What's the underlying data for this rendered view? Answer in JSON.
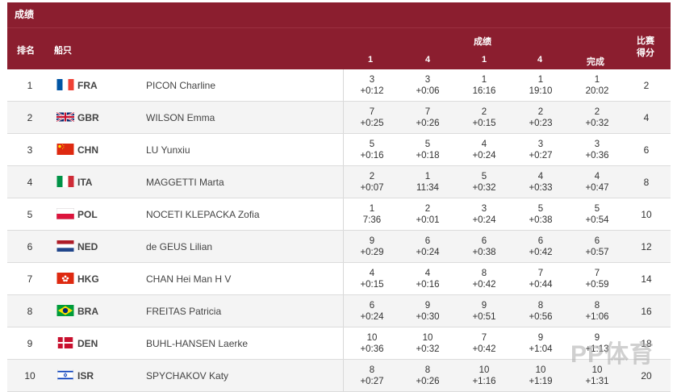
{
  "header": {
    "section_title": "成绩",
    "col_rank": "排名",
    "col_boat": "船只",
    "col_results": "成绩",
    "race_cols": [
      "1",
      "4",
      "1",
      "4",
      "完成"
    ],
    "col_points_line1": "比赛",
    "col_points_line2": "得分"
  },
  "rows": [
    {
      "rank": "1",
      "code": "FRA",
      "flag": "fr-flag-icon",
      "name": "PICON Charline",
      "r": [
        [
          "3",
          "+0:12"
        ],
        [
          "3",
          "+0:06"
        ],
        [
          "1",
          "16:16"
        ],
        [
          "1",
          "19:10"
        ],
        [
          "1",
          "20:02"
        ]
      ],
      "points": "2"
    },
    {
      "rank": "2",
      "code": "GBR",
      "flag": "gb-flag-icon",
      "name": "WILSON Emma",
      "r": [
        [
          "7",
          "+0:25"
        ],
        [
          "7",
          "+0:26"
        ],
        [
          "2",
          "+0:15"
        ],
        [
          "2",
          "+0:23"
        ],
        [
          "2",
          "+0:32"
        ]
      ],
      "points": "4"
    },
    {
      "rank": "3",
      "code": "CHN",
      "flag": "cn-flag-icon",
      "name": "LU Yunxiu",
      "r": [
        [
          "5",
          "+0:16"
        ],
        [
          "5",
          "+0:18"
        ],
        [
          "4",
          "+0:24"
        ],
        [
          "3",
          "+0:27"
        ],
        [
          "3",
          "+0:36"
        ]
      ],
      "points": "6"
    },
    {
      "rank": "4",
      "code": "ITA",
      "flag": "it-flag-icon",
      "name": "MAGGETTI Marta",
      "r": [
        [
          "2",
          "+0:07"
        ],
        [
          "1",
          "11:34"
        ],
        [
          "5",
          "+0:32"
        ],
        [
          "4",
          "+0:33"
        ],
        [
          "4",
          "+0:47"
        ]
      ],
      "points": "8"
    },
    {
      "rank": "5",
      "code": "POL",
      "flag": "pl-flag-icon",
      "name": "NOCETI KLEPACKA Zofia",
      "r": [
        [
          "1",
          "7:36"
        ],
        [
          "2",
          "+0:01"
        ],
        [
          "3",
          "+0:24"
        ],
        [
          "5",
          "+0:38"
        ],
        [
          "5",
          "+0:54"
        ]
      ],
      "points": "10"
    },
    {
      "rank": "6",
      "code": "NED",
      "flag": "nl-flag-icon",
      "name": "de GEUS Lilian",
      "r": [
        [
          "9",
          "+0:29"
        ],
        [
          "6",
          "+0:24"
        ],
        [
          "6",
          "+0:38"
        ],
        [
          "6",
          "+0:42"
        ],
        [
          "6",
          "+0:57"
        ]
      ],
      "points": "12"
    },
    {
      "rank": "7",
      "code": "HKG",
      "flag": "hk-flag-icon",
      "name": "CHAN Hei Man H V",
      "r": [
        [
          "4",
          "+0:15"
        ],
        [
          "4",
          "+0:16"
        ],
        [
          "8",
          "+0:42"
        ],
        [
          "7",
          "+0:44"
        ],
        [
          "7",
          "+0:59"
        ]
      ],
      "points": "14"
    },
    {
      "rank": "8",
      "code": "BRA",
      "flag": "br-flag-icon",
      "name": "FREITAS Patricia",
      "r": [
        [
          "6",
          "+0:24"
        ],
        [
          "9",
          "+0:30"
        ],
        [
          "9",
          "+0:51"
        ],
        [
          "8",
          "+0:56"
        ],
        [
          "8",
          "+1:06"
        ]
      ],
      "points": "16"
    },
    {
      "rank": "9",
      "code": "DEN",
      "flag": "dk-flag-icon",
      "name": "BUHL-HANSEN Laerke",
      "r": [
        [
          "10",
          "+0:36"
        ],
        [
          "10",
          "+0:32"
        ],
        [
          "7",
          "+0:42"
        ],
        [
          "9",
          "+1:04"
        ],
        [
          "9",
          "+1:13"
        ]
      ],
      "points": "18"
    },
    {
      "rank": "10",
      "code": "ISR",
      "flag": "il-flag-icon",
      "name": "SPYCHAKOV Katy",
      "r": [
        [
          "8",
          "+0:27"
        ],
        [
          "8",
          "+0:26"
        ],
        [
          "10",
          "+1:16"
        ],
        [
          "10",
          "+1:19"
        ],
        [
          "10",
          "+1:31"
        ]
      ],
      "points": "20"
    }
  ],
  "colors": {
    "header_bg": "#8b1e2f",
    "row_alt": "#f4f4f4"
  },
  "watermark": "PP体育"
}
